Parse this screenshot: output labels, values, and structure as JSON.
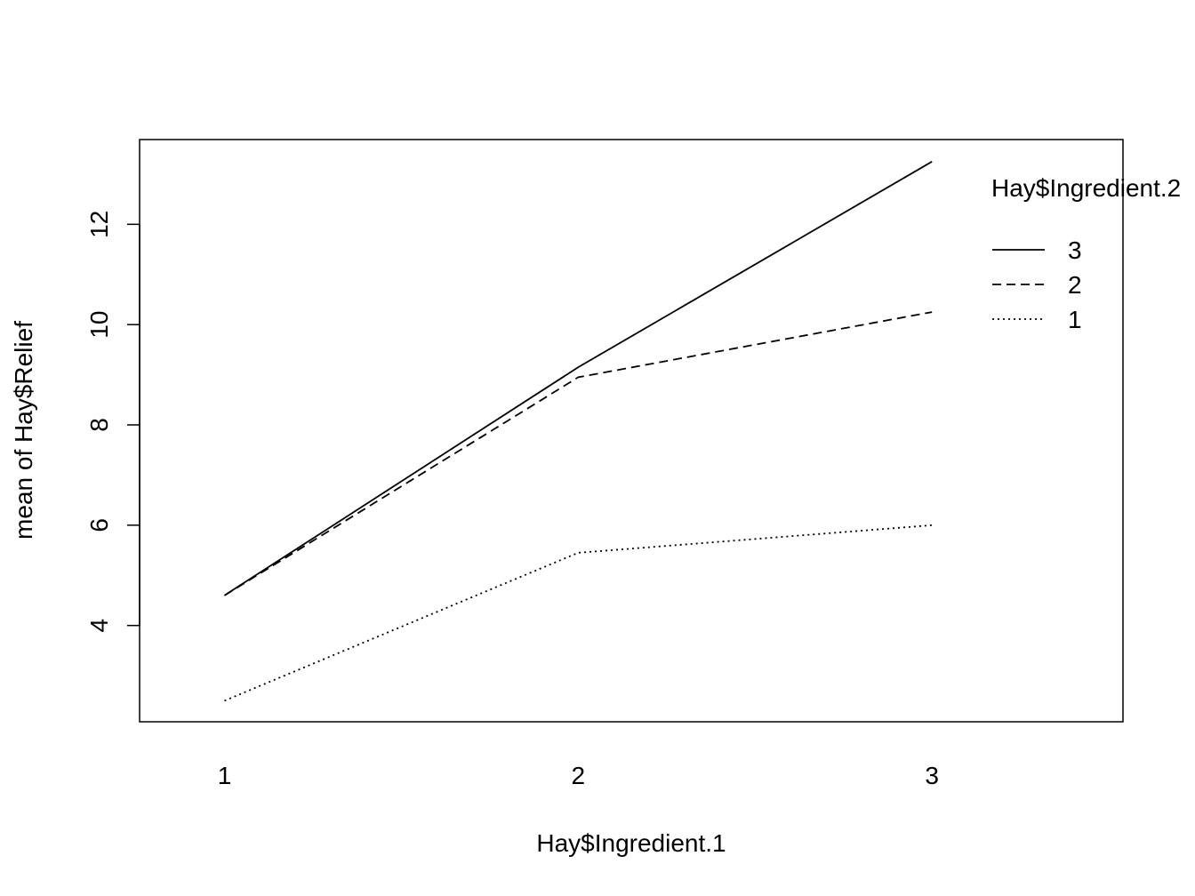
{
  "chart_data": {
    "type": "line",
    "title": "",
    "xlabel": "Hay$Ingredient.1",
    "ylabel": "mean of  Hay$Relief",
    "x": [
      1,
      2,
      3
    ],
    "x_tick_labels": [
      "1",
      "2",
      "3"
    ],
    "y_ticks": [
      4,
      6,
      8,
      10,
      12
    ],
    "y_tick_labels": [
      "4",
      "6",
      "8",
      "10",
      "12"
    ],
    "xlim": [
      0.76,
      3.54
    ],
    "ylim": [
      2.08,
      13.69
    ],
    "grid": false,
    "legend": {
      "title": "Hay$Ingredient.2",
      "placement": "top-right"
    },
    "series": [
      {
        "name": "3",
        "line_style": "solid",
        "values": [
          4.6,
          9.15,
          13.25
        ]
      },
      {
        "name": "2",
        "line_style": "dashed",
        "values": [
          4.6,
          8.95,
          10.25
        ]
      },
      {
        "name": "1",
        "line_style": "dotted",
        "values": [
          2.5,
          5.45,
          6.0
        ]
      }
    ]
  }
}
